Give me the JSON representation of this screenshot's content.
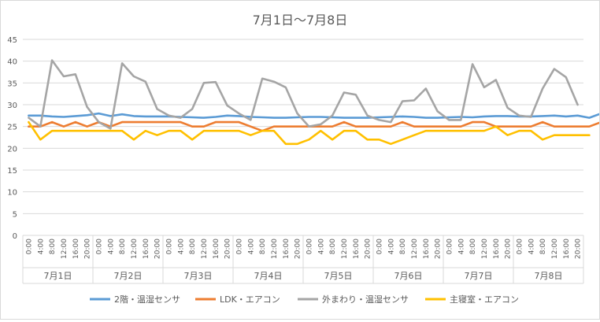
{
  "chart_data": {
    "type": "line",
    "title": "7月1日～7月8日",
    "xlabel": "",
    "ylabel": "",
    "ylim": [
      0,
      45
    ],
    "yticks": [
      0,
      5,
      10,
      15,
      20,
      25,
      30,
      35,
      40,
      45
    ],
    "grid": true,
    "legend_position": "bottom",
    "hour_labels": [
      "0:00",
      "4:00",
      "8:00",
      "12:00",
      "16:00",
      "20:00"
    ],
    "day_labels": [
      "7月1日",
      "7月2日",
      "7月3日",
      "7月4日",
      "7月5日",
      "7月6日",
      "7月7日",
      "7月8日"
    ],
    "series": [
      {
        "name": "2階・温湿センサ",
        "color": "#5b9bd5",
        "values": [
          27.5,
          27.5,
          27.3,
          27.2,
          27.4,
          27.6,
          28.0,
          27.4,
          27.8,
          27.4,
          27.3,
          27.3,
          27.3,
          27.2,
          27.1,
          27.0,
          27.2,
          27.5,
          27.4,
          27.2,
          27.1,
          27.0,
          27.0,
          27.1,
          27.2,
          27.2,
          27.1,
          27.0,
          27.0,
          27.0,
          27.1,
          27.2,
          27.3,
          27.2,
          27.0,
          27.0,
          27.1,
          27.2,
          27.1,
          27.3,
          27.4,
          27.4,
          27.3,
          27.3,
          27.4,
          27.5,
          27.3,
          27.5,
          27.0,
          28.0
        ]
      },
      {
        "name": "LDK・エアコン",
        "color": "#ed7d31",
        "values": [
          25,
          25,
          26,
          25,
          26,
          25,
          26,
          25,
          26,
          26,
          26,
          26,
          26,
          26,
          25,
          25,
          26,
          26,
          26,
          25,
          24,
          25,
          25,
          25,
          25,
          25,
          25,
          26,
          25,
          25,
          25,
          25,
          26,
          25,
          25,
          25,
          25,
          25,
          26,
          26,
          25,
          25,
          25,
          25,
          26,
          25,
          25,
          25,
          25,
          26,
          26
        ]
      },
      {
        "name": "外まわり・温湿センサ",
        "color": "#a5a5a5",
        "values": [
          27,
          25,
          40.2,
          36.5,
          37,
          29.5,
          26,
          24.5,
          39.5,
          36.5,
          35.3,
          29,
          27.5,
          27,
          29,
          35,
          35.2,
          29.8,
          28,
          26.5,
          36,
          35.3,
          34,
          28,
          25,
          25.5,
          27.5,
          32.8,
          32.3,
          27.5,
          26.5,
          26,
          30.8,
          31,
          33.7,
          28.5,
          26.5,
          26.5,
          39.3,
          34,
          35.7,
          29.3,
          27.5,
          27.2,
          33.7,
          38.2,
          36.3,
          30
        ]
      },
      {
        "name": "主寝室・エアコン",
        "color": "#ffc000",
        "values": [
          26,
          22,
          24,
          24,
          24,
          24,
          24,
          24,
          24,
          22,
          24,
          23,
          24,
          24,
          22,
          24,
          24,
          24,
          24,
          23,
          24,
          24,
          21,
          21,
          22,
          24,
          22,
          24,
          24,
          22,
          22,
          21,
          22,
          23,
          24,
          24,
          24,
          24,
          24,
          24,
          25,
          23,
          24,
          24,
          22,
          23,
          23,
          23,
          23
        ]
      }
    ]
  }
}
